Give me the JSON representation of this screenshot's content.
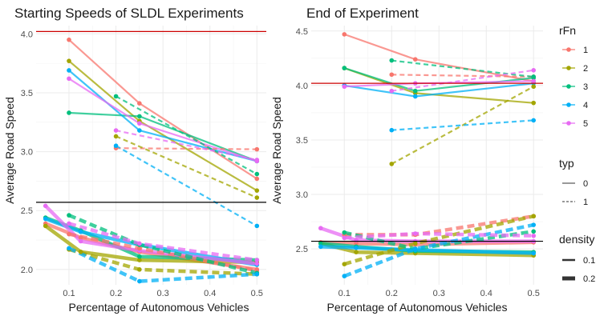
{
  "colors": {
    "1": "#F8766D",
    "2": "#A3A500",
    "3": "#00BF7D",
    "4": "#00B0F6",
    "5": "#E76BF3",
    "grid": "#ebebeb",
    "axis_text": "#4d4d4d",
    "title_text": "#1a1a1a",
    "hline_red": "#cc0000",
    "hline_black": "#000000"
  },
  "legend": {
    "rFn": {
      "title": "rFn",
      "items": [
        "1",
        "2",
        "3",
        "4",
        "5"
      ]
    },
    "typ": {
      "title": "typ",
      "items": [
        "0",
        "1"
      ]
    },
    "density": {
      "title": "density",
      "items": [
        "0.1",
        "0.2"
      ]
    }
  },
  "chart_data": [
    {
      "type": "line",
      "title": "Starting Speeds of SLDL Experiments",
      "xlabel": "Percentage of Autonomous Vehicles",
      "ylabel": "Average Road Speed",
      "xlim": [
        0.03,
        0.52
      ],
      "ylim": [
        1.87,
        4.07
      ],
      "xticks": [
        0.1,
        0.2,
        0.3,
        0.4,
        0.5
      ],
      "xticklabels": [
        "0.1",
        "0.2",
        "0.3",
        "0.4",
        "0.5"
      ],
      "yticks": [
        2.0,
        2.5,
        3.0,
        3.5,
        4.0
      ],
      "yticklabels": [
        "2.0",
        "2.5",
        "3.0",
        "3.5",
        "4.0"
      ],
      "hlines": [
        {
          "y": 4.02,
          "color": "red"
        },
        {
          "y": 2.57,
          "color": "black"
        }
      ],
      "series": [
        {
          "rFn": "1",
          "typ": "0",
          "density": "0.1",
          "x": [
            0.1,
            0.25,
            0.5
          ],
          "y": [
            3.95,
            3.41,
            2.77
          ]
        },
        {
          "rFn": "2",
          "typ": "0",
          "density": "0.1",
          "x": [
            0.1,
            0.25,
            0.5
          ],
          "y": [
            3.77,
            3.26,
            2.67
          ]
        },
        {
          "rFn": "3",
          "typ": "0",
          "density": "0.1",
          "x": [
            0.1,
            0.25,
            0.5
          ],
          "y": [
            3.33,
            3.3,
            2.92
          ]
        },
        {
          "rFn": "4",
          "typ": "0",
          "density": "0.1",
          "x": [
            0.1,
            0.25,
            0.5
          ],
          "y": [
            3.69,
            3.18,
            2.92
          ]
        },
        {
          "rFn": "5",
          "typ": "0",
          "density": "0.1",
          "x": [
            0.1,
            0.25,
            0.5
          ],
          "y": [
            3.62,
            3.24,
            2.92
          ]
        },
        {
          "rFn": "1",
          "typ": "1",
          "density": "0.1",
          "x": [
            0.2,
            0.5
          ],
          "y": [
            3.03,
            3.02
          ]
        },
        {
          "rFn": "2",
          "typ": "1",
          "density": "0.1",
          "x": [
            0.2,
            0.5
          ],
          "y": [
            3.13,
            2.61
          ]
        },
        {
          "rFn": "3",
          "typ": "1",
          "density": "0.1",
          "x": [
            0.2,
            0.5
          ],
          "y": [
            3.47,
            2.81
          ]
        },
        {
          "rFn": "4",
          "typ": "1",
          "density": "0.1",
          "x": [
            0.2,
            0.5
          ],
          "y": [
            3.05,
            2.37
          ]
        },
        {
          "rFn": "5",
          "typ": "1",
          "density": "0.1",
          "x": [
            0.2,
            0.5
          ],
          "y": [
            3.18,
            2.93
          ]
        },
        {
          "rFn": "1",
          "typ": "0",
          "density": "0.2",
          "x": [
            0.05,
            0.125,
            0.25,
            0.5
          ],
          "y": [
            2.39,
            2.27,
            2.15,
            2.0
          ]
        },
        {
          "rFn": "2",
          "typ": "0",
          "density": "0.2",
          "x": [
            0.05,
            0.125,
            0.25,
            0.5
          ],
          "y": [
            2.37,
            2.15,
            2.08,
            2.06
          ]
        },
        {
          "rFn": "3",
          "typ": "0",
          "density": "0.2",
          "x": [
            0.05,
            0.125,
            0.25,
            0.5
          ],
          "y": [
            2.44,
            2.33,
            2.11,
            2.08
          ]
        },
        {
          "rFn": "4",
          "typ": "0",
          "density": "0.2",
          "x": [
            0.05,
            0.125,
            0.25,
            0.5
          ],
          "y": [
            2.43,
            2.32,
            2.21,
            2.04
          ]
        },
        {
          "rFn": "5",
          "typ": "0",
          "density": "0.2",
          "x": [
            0.05,
            0.125,
            0.25,
            0.5
          ],
          "y": [
            2.54,
            2.24,
            2.16,
            2.05
          ]
        },
        {
          "rFn": "1",
          "typ": "1",
          "density": "0.2",
          "x": [
            0.1,
            0.25,
            0.5
          ],
          "y": [
            2.3,
            2.18,
            1.99
          ]
        },
        {
          "rFn": "2",
          "typ": "1",
          "density": "0.2",
          "x": [
            0.1,
            0.25,
            0.5
          ],
          "y": [
            2.17,
            2.0,
            1.96
          ]
        },
        {
          "rFn": "3",
          "typ": "1",
          "density": "0.2",
          "x": [
            0.1,
            0.25,
            0.5
          ],
          "y": [
            2.46,
            2.21,
            1.97
          ]
        },
        {
          "rFn": "4",
          "typ": "1",
          "density": "0.2",
          "x": [
            0.1,
            0.25,
            0.5
          ],
          "y": [
            2.18,
            1.9,
            1.96
          ]
        },
        {
          "rFn": "5",
          "typ": "1",
          "density": "0.2",
          "x": [
            0.1,
            0.25,
            0.5
          ],
          "y": [
            2.39,
            2.22,
            2.08
          ]
        }
      ]
    },
    {
      "type": "line",
      "title": "End of Experiment",
      "xlabel": "Percentage of Autonomous Vehicles",
      "ylabel": "Average Road Speed",
      "xlim": [
        0.03,
        0.52
      ],
      "ylim": [
        2.17,
        4.55
      ],
      "xticks": [
        0.1,
        0.2,
        0.3,
        0.4,
        0.5
      ],
      "xticklabels": [
        "0.1",
        "0.2",
        "0.3",
        "0.4",
        "0.5"
      ],
      "yticks": [
        2.5,
        3.0,
        3.5,
        4.0,
        4.5
      ],
      "yticklabels": [
        "2.5",
        "3.0",
        "3.5",
        "4.0",
        "4.5"
      ],
      "hlines": [
        {
          "y": 4.02,
          "color": "red"
        },
        {
          "y": 2.57,
          "color": "black"
        }
      ],
      "series": [
        {
          "rFn": "1",
          "typ": "0",
          "density": "0.1",
          "x": [
            0.1,
            0.25,
            0.5
          ],
          "y": [
            4.47,
            4.24,
            4.04
          ]
        },
        {
          "rFn": "2",
          "typ": "0",
          "density": "0.1",
          "x": [
            0.1,
            0.25,
            0.5
          ],
          "y": [
            4.16,
            3.93,
            3.84
          ]
        },
        {
          "rFn": "3",
          "typ": "0",
          "density": "0.1",
          "x": [
            0.1,
            0.25,
            0.5
          ],
          "y": [
            4.16,
            3.95,
            4.07
          ]
        },
        {
          "rFn": "4",
          "typ": "0",
          "density": "0.1",
          "x": [
            0.1,
            0.25,
            0.5
          ],
          "y": [
            4.0,
            3.9,
            4.02
          ]
        },
        {
          "rFn": "5",
          "typ": "0",
          "density": "0.1",
          "x": [
            0.1,
            0.25,
            0.5
          ],
          "y": [
            3.99,
            4.02,
            4.04
          ]
        },
        {
          "rFn": "1",
          "typ": "1",
          "density": "0.1",
          "x": [
            0.2,
            0.5
          ],
          "y": [
            4.1,
            4.08
          ]
        },
        {
          "rFn": "2",
          "typ": "1",
          "density": "0.1",
          "x": [
            0.2,
            0.5
          ],
          "y": [
            3.28,
            3.99
          ]
        },
        {
          "rFn": "3",
          "typ": "1",
          "density": "0.1",
          "x": [
            0.2,
            0.5
          ],
          "y": [
            4.23,
            4.08
          ]
        },
        {
          "rFn": "4",
          "typ": "1",
          "density": "0.1",
          "x": [
            0.2,
            0.5
          ],
          "y": [
            3.59,
            3.68
          ]
        },
        {
          "rFn": "5",
          "typ": "1",
          "density": "0.1",
          "x": [
            0.2,
            0.5
          ],
          "y": [
            3.95,
            4.14
          ]
        },
        {
          "rFn": "1",
          "typ": "0",
          "density": "0.2",
          "x": [
            0.05,
            0.125,
            0.25,
            0.5
          ],
          "y": [
            2.56,
            2.55,
            2.54,
            2.56
          ]
        },
        {
          "rFn": "2",
          "typ": "0",
          "density": "0.2",
          "x": [
            0.05,
            0.125,
            0.25,
            0.5
          ],
          "y": [
            2.55,
            2.47,
            2.46,
            2.44
          ]
        },
        {
          "rFn": "3",
          "typ": "0",
          "density": "0.2",
          "x": [
            0.05,
            0.125,
            0.25,
            0.5
          ],
          "y": [
            2.55,
            2.52,
            2.48,
            2.47
          ]
        },
        {
          "rFn": "4",
          "typ": "0",
          "density": "0.2",
          "x": [
            0.05,
            0.125,
            0.25,
            0.5
          ],
          "y": [
            2.52,
            2.51,
            2.49,
            2.46
          ]
        },
        {
          "rFn": "5",
          "typ": "0",
          "density": "0.2",
          "x": [
            0.05,
            0.125,
            0.25,
            0.5
          ],
          "y": [
            2.69,
            2.58,
            2.57,
            2.57
          ]
        },
        {
          "rFn": "1",
          "typ": "1",
          "density": "0.2",
          "x": [
            0.1,
            0.25,
            0.5
          ],
          "y": [
            2.63,
            2.63,
            2.8
          ]
        },
        {
          "rFn": "2",
          "typ": "1",
          "density": "0.2",
          "x": [
            0.1,
            0.25,
            0.5
          ],
          "y": [
            2.36,
            2.55,
            2.8
          ]
        },
        {
          "rFn": "3",
          "typ": "1",
          "density": "0.2",
          "x": [
            0.1,
            0.25,
            0.5
          ],
          "y": [
            2.65,
            2.5,
            2.66
          ]
        },
        {
          "rFn": "4",
          "typ": "1",
          "density": "0.2",
          "x": [
            0.1,
            0.25,
            0.5
          ],
          "y": [
            2.25,
            2.5,
            2.72
          ]
        },
        {
          "rFn": "5",
          "typ": "1",
          "density": "0.2",
          "x": [
            0.1,
            0.25,
            0.5
          ],
          "y": [
            2.6,
            2.64,
            2.62
          ]
        }
      ]
    }
  ]
}
